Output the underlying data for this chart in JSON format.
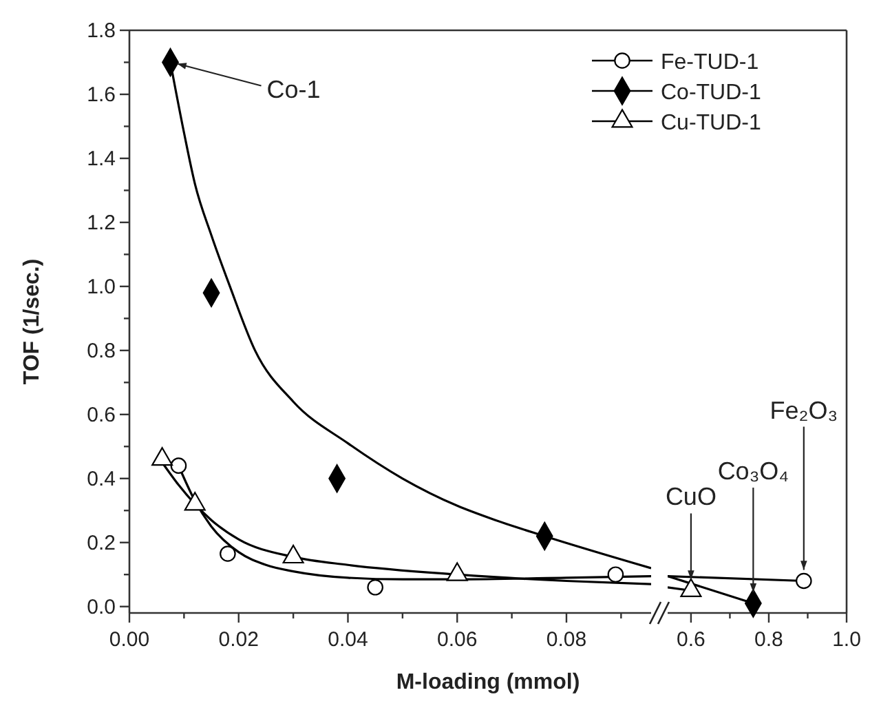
{
  "chart_data": [
    {
      "type": "scatter",
      "ylabel": "TOF (1/sec.)",
      "xlabel": "M-loading (mmol)",
      "xlim": [
        0,
        0.0955
      ],
      "ylim": [
        -0.02,
        1.8
      ],
      "xticks": [
        {
          "value": 0,
          "label": "0.00"
        },
        {
          "value": 0.01,
          "label": null
        },
        {
          "value": 0.02,
          "label": "0.02"
        },
        {
          "value": 0.03,
          "label": null
        },
        {
          "value": 0.04,
          "label": "0.04"
        },
        {
          "value": 0.05,
          "label": null
        },
        {
          "value": 0.06,
          "label": "0.06"
        },
        {
          "value": 0.07,
          "label": null
        },
        {
          "value": 0.08,
          "label": "0.08"
        },
        {
          "value": 0.09,
          "label": null
        }
      ],
      "yticks": [
        {
          "value": 0,
          "label": "0.0"
        },
        {
          "value": 0.1,
          "label": null
        },
        {
          "value": 0.2,
          "label": "0.2"
        },
        {
          "value": 0.3,
          "label": null
        },
        {
          "value": 0.4,
          "label": "0.4"
        },
        {
          "value": 0.5,
          "label": null
        },
        {
          "value": 0.6,
          "label": "0.6"
        },
        {
          "value": 0.7,
          "label": null
        },
        {
          "value": 0.8,
          "label": "0.8"
        },
        {
          "value": 0.9,
          "label": null
        },
        {
          "value": 1.0,
          "label": "1.0"
        },
        {
          "value": 1.1,
          "label": null
        },
        {
          "value": 1.2,
          "label": "1.2"
        },
        {
          "value": 1.3,
          "label": null
        },
        {
          "value": 1.4,
          "label": "1.4"
        },
        {
          "value": 1.5,
          "label": null
        },
        {
          "value": 1.6,
          "label": "1.6"
        },
        {
          "value": 1.7,
          "label": null
        },
        {
          "value": 1.8,
          "label": "1.8"
        }
      ],
      "legend": "top right",
      "annotations": [
        {
          "text": "Co-1",
          "x": 0.0075,
          "y": 1.7
        }
      ],
      "series": [
        {
          "name": "Fe-TUD-1",
          "type": "scatter",
          "marker": "circle",
          "color": "#ffffff",
          "x": [
            0.009,
            0.018,
            0.045,
            0.089
          ],
          "values": [
            0.44,
            0.165,
            0.06,
            0.1
          ]
        },
        {
          "name": "Co-TUD-1",
          "type": "scatter",
          "marker": "diamond",
          "color": "#000000",
          "x": [
            0.0075,
            0.015,
            0.038,
            0.076
          ],
          "values": [
            1.7,
            0.98,
            0.4,
            0.22
          ]
        },
        {
          "name": "Cu-TUD-1",
          "type": "scatter",
          "marker": "triangle",
          "color": "#ffffff",
          "x": [
            0.006,
            0.012,
            0.03,
            0.06
          ],
          "values": [
            0.46,
            0.32,
            0.155,
            0.1
          ]
        },
        {
          "type": "line",
          "marker": "none",
          "color": "#000000",
          "x": [
            0.009,
            0.012,
            0.015,
            0.02,
            0.025,
            0.03,
            0.04,
            0.05,
            0.06,
            0.08,
            0.0955
          ],
          "values": [
            0.44,
            0.33,
            0.25,
            0.17,
            0.13,
            0.11,
            0.09,
            0.085,
            0.085,
            0.09,
            0.095
          ]
        },
        {
          "type": "line",
          "marker": "none",
          "color": "#000000",
          "x": [
            0.0075,
            0.01,
            0.012,
            0.015,
            0.0184,
            0.023,
            0.03,
            0.04,
            0.05,
            0.06,
            0.067,
            0.076,
            0.0955
          ],
          "values": [
            1.7,
            1.48,
            1.32,
            1.16,
            1.0,
            0.8,
            0.64,
            0.51,
            0.4,
            0.315,
            0.27,
            0.22,
            0.12
          ]
        },
        {
          "type": "line",
          "marker": "none",
          "color": "#000000",
          "x": [
            0.006,
            0.009,
            0.012,
            0.015,
            0.02,
            0.03,
            0.04,
            0.06,
            0.08,
            0.0955
          ],
          "values": [
            0.45,
            0.38,
            0.32,
            0.27,
            0.21,
            0.155,
            0.13,
            0.1,
            0.08,
            0.07
          ]
        }
      ]
    },
    {
      "type": "scatter",
      "xlim": [
        0.54,
        1.0
      ],
      "ylim": [
        -0.02,
        1.8
      ],
      "tick_labels": "x",
      "xticks": [
        {
          "value": 0.6,
          "label": "0.6"
        },
        {
          "value": 0.7,
          "label": null
        },
        {
          "value": 0.8,
          "label": "0.8"
        },
        {
          "value": 0.9,
          "label": null
        },
        {
          "value": 1.0,
          "label": "1.0"
        }
      ],
      "annotations": [
        {
          "text": "CuO",
          "x": 0.6,
          "y": 0.05
        },
        {
          "text": "Co₃O₄",
          "x": 0.76,
          "y": 0.01
        },
        {
          "text": "Fe₂O₃",
          "x": 0.89,
          "y": 0.08
        }
      ],
      "series": [
        {
          "type": "scatter",
          "marker": "circle",
          "color": "#ffffff",
          "x": [
            0.89
          ],
          "values": [
            0.08
          ]
        },
        {
          "type": "scatter",
          "marker": "diamond",
          "color": "#000000",
          "x": [
            0.76
          ],
          "values": [
            0.01
          ]
        },
        {
          "type": "scatter",
          "marker": "triangle",
          "color": "#ffffff",
          "x": [
            0.6
          ],
          "values": [
            0.05
          ]
        },
        {
          "type": "line",
          "marker": "none",
          "color": "#000000",
          "x": [
            0.54,
            0.89
          ],
          "values": [
            0.095,
            0.08
          ]
        },
        {
          "type": "line",
          "marker": "none",
          "color": "#000000",
          "x": [
            0.54,
            0.76
          ],
          "values": [
            0.095,
            0.01
          ]
        },
        {
          "type": "line",
          "marker": "none",
          "color": "#000000",
          "x": [
            0.54,
            0.6
          ],
          "values": [
            0.06,
            0.05
          ]
        }
      ]
    }
  ]
}
